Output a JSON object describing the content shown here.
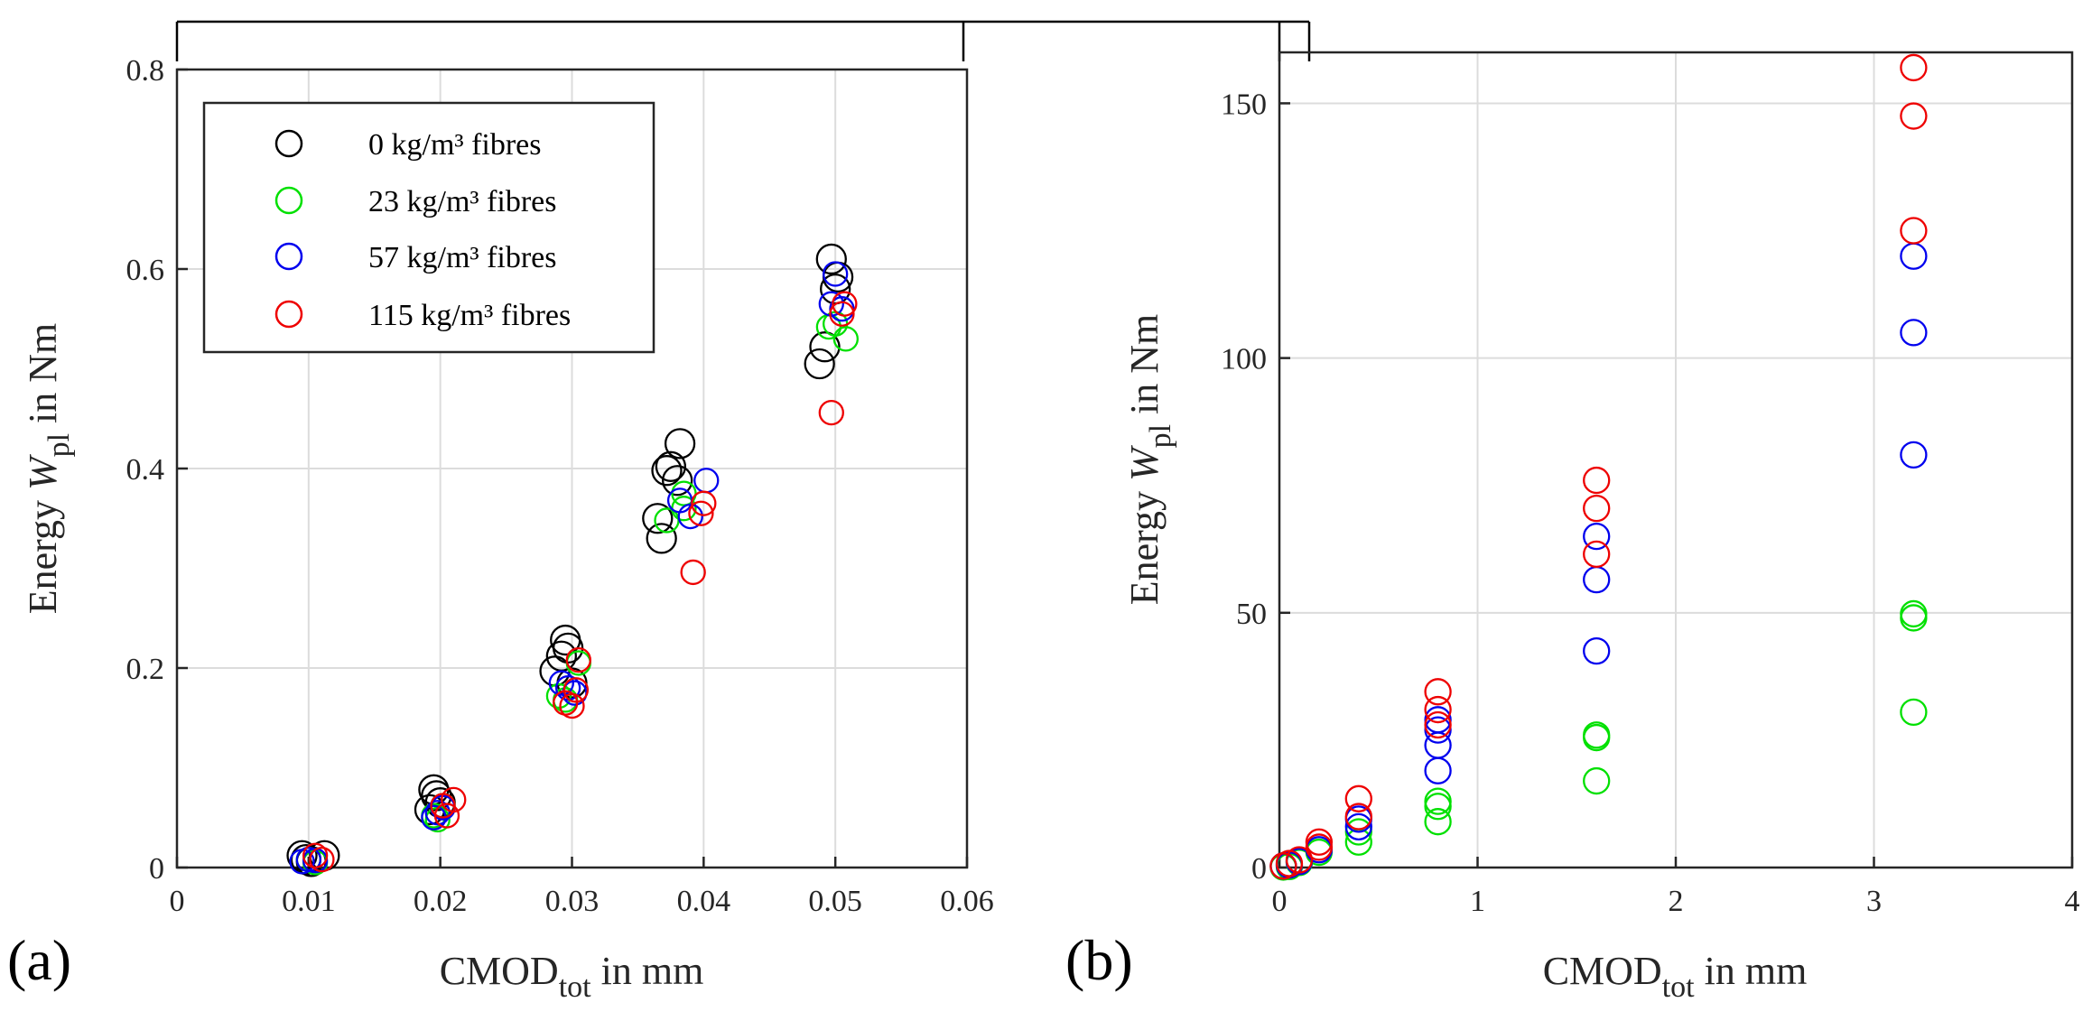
{
  "panels": [
    {
      "id": "a",
      "panel_label": "(a)",
      "ylabel": {
        "pre": "Energy  ",
        "var": "W",
        "sub": "pl",
        "post": " in Nm"
      },
      "xlabel": {
        "pre": "CMOD",
        "sub": "tot",
        "post": " in mm"
      }
    },
    {
      "id": "b",
      "panel_label": "(b)",
      "ylabel": {
        "pre": "Energy  ",
        "var": "W",
        "sub": "pl",
        "post": " in Nm"
      },
      "xlabel": {
        "pre": "CMOD",
        "sub": "tot",
        "post": " in mm"
      }
    }
  ],
  "legend": [
    {
      "label": "0 kg/m³ fibres",
      "color": "#000000"
    },
    {
      "label": "23 kg/m³ fibres",
      "color": "#00e000"
    },
    {
      "label": "57 kg/m³ fibres",
      "color": "#0000ee"
    },
    {
      "label": "115 kg/m³ fibres",
      "color": "#ee0000"
    }
  ],
  "chart_data": [
    {
      "id": "a",
      "type": "scatter",
      "title": "",
      "xlabel": "CMOD_tot in mm",
      "ylabel": "Energy W_pl in Nm",
      "xlim": [
        0,
        0.06
      ],
      "ylim": [
        0,
        0.8
      ],
      "xticks": [
        0,
        0.01,
        0.02,
        0.03,
        0.04,
        0.05,
        0.06
      ],
      "xtick_labels": [
        "0",
        "0.01",
        "0.02",
        "0.03",
        "0.04",
        "0.05",
        "0.06"
      ],
      "yticks": [
        0,
        0.2,
        0.4,
        0.6,
        0.8
      ],
      "ytick_labels": [
        "0",
        "0.2",
        "0.4",
        "0.6",
        "0.8"
      ],
      "grid": true,
      "legend_position": "top-left",
      "series": [
        {
          "name": "0 kg/m³ fibres",
          "color": "#000000",
          "marker_size": "large",
          "points": [
            [
              0.0095,
              0.012
            ],
            [
              0.0098,
              0.008
            ],
            [
              0.0102,
              0.006
            ],
            [
              0.0112,
              0.012
            ],
            [
              0.0192,
              0.058
            ],
            [
              0.0195,
              0.078
            ],
            [
              0.0197,
              0.072
            ],
            [
              0.02,
              0.065
            ],
            [
              0.0287,
              0.197
            ],
            [
              0.0292,
              0.212
            ],
            [
              0.0295,
              0.228
            ],
            [
              0.0297,
              0.22
            ],
            [
              0.03,
              0.185
            ],
            [
              0.0365,
              0.35
            ],
            [
              0.0368,
              0.33
            ],
            [
              0.0372,
              0.398
            ],
            [
              0.0375,
              0.402
            ],
            [
              0.038,
              0.388
            ],
            [
              0.0382,
              0.425
            ],
            [
              0.0488,
              0.505
            ],
            [
              0.0492,
              0.522
            ],
            [
              0.0497,
              0.61
            ],
            [
              0.05,
              0.58
            ],
            [
              0.0502,
              0.592
            ]
          ]
        },
        {
          "name": "23 kg/m³ fibres",
          "color": "#00e000",
          "marker_size": "small",
          "points": [
            [
              0.01,
              0.008
            ],
            [
              0.0105,
              0.005
            ],
            [
              0.0195,
              0.052
            ],
            [
              0.0198,
              0.048
            ],
            [
              0.0202,
              0.062
            ],
            [
              0.029,
              0.172
            ],
            [
              0.0295,
              0.168
            ],
            [
              0.0305,
              0.205
            ],
            [
              0.0372,
              0.348
            ],
            [
              0.0385,
              0.36
            ],
            [
              0.0385,
              0.375
            ],
            [
              0.0495,
              0.542
            ],
            [
              0.05,
              0.545
            ],
            [
              0.0508,
              0.53
            ]
          ]
        },
        {
          "name": "57 kg/m³ fibres",
          "color": "#0000ee",
          "marker_size": "small",
          "points": [
            [
              0.0095,
              0.006
            ],
            [
              0.01,
              0.008
            ],
            [
              0.0105,
              0.007
            ],
            [
              0.0195,
              0.05
            ],
            [
              0.0198,
              0.055
            ],
            [
              0.0202,
              0.06
            ],
            [
              0.0292,
              0.185
            ],
            [
              0.0297,
              0.18
            ],
            [
              0.0302,
              0.175
            ],
            [
              0.0382,
              0.368
            ],
            [
              0.039,
              0.352
            ],
            [
              0.0402,
              0.388
            ],
            [
              0.0497,
              0.565
            ],
            [
              0.05,
              0.595
            ],
            [
              0.0505,
              0.56
            ]
          ]
        },
        {
          "name": "115 kg/m³ fibres",
          "color": "#ee0000",
          "marker_size": "small",
          "points": [
            [
              0.0105,
              0.012
            ],
            [
              0.011,
              0.008
            ],
            [
              0.0202,
              0.062
            ],
            [
              0.0205,
              0.052
            ],
            [
              0.021,
              0.068
            ],
            [
              0.0295,
              0.165
            ],
            [
              0.03,
              0.162
            ],
            [
              0.0305,
              0.208
            ],
            [
              0.0303,
              0.178
            ],
            [
              0.0392,
              0.296
            ],
            [
              0.0398,
              0.355
            ],
            [
              0.04,
              0.365
            ],
            [
              0.0497,
              0.456
            ],
            [
              0.0505,
              0.555
            ],
            [
              0.0507,
              0.565
            ]
          ]
        }
      ]
    },
    {
      "id": "b",
      "type": "scatter",
      "title": "",
      "xlabel": "CMOD_tot in mm",
      "ylabel": "Energy W_pl in Nm",
      "xlim": [
        0,
        4
      ],
      "ylim": [
        0,
        160
      ],
      "xticks": [
        0,
        1,
        2,
        3,
        4
      ],
      "xtick_labels": [
        "0",
        "1",
        "2",
        "3",
        "4"
      ],
      "yticks": [
        0,
        50,
        100,
        150
      ],
      "ytick_labels": [
        "0",
        "50",
        "100",
        "150"
      ],
      "grid": true,
      "series": [
        {
          "name": "23 kg/m³ fibres",
          "color": "#00e000",
          "marker_size": "small",
          "points": [
            [
              0.02,
              0.1
            ],
            [
              0.05,
              0.2
            ],
            [
              0.1,
              1.0
            ],
            [
              0.2,
              3.0
            ],
            [
              0.4,
              5.0
            ],
            [
              0.4,
              7.0
            ],
            [
              0.8,
              9.0
            ],
            [
              0.8,
              12.0
            ],
            [
              0.8,
              13.0
            ],
            [
              1.6,
              17.0
            ],
            [
              1.6,
              25.5
            ],
            [
              1.6,
              26.0
            ],
            [
              3.2,
              30.5
            ],
            [
              3.2,
              49.0
            ],
            [
              3.2,
              49.8
            ]
          ]
        },
        {
          "name": "57 kg/m³ fibres",
          "color": "#0000ee",
          "marker_size": "small",
          "points": [
            [
              0.02,
              0.3
            ],
            [
              0.05,
              0.5
            ],
            [
              0.1,
              1.2
            ],
            [
              0.2,
              3.5
            ],
            [
              0.4,
              8.0
            ],
            [
              0.4,
              9.5
            ],
            [
              0.8,
              19.0
            ],
            [
              0.8,
              24.0
            ],
            [
              0.8,
              27.0
            ],
            [
              0.8,
              29.0
            ],
            [
              1.6,
              42.5
            ],
            [
              1.6,
              56.5
            ],
            [
              1.6,
              65.0
            ],
            [
              3.2,
              81.0
            ],
            [
              3.2,
              105.0
            ],
            [
              3.2,
              120.0
            ]
          ]
        },
        {
          "name": "115 kg/m³ fibres",
          "color": "#ee0000",
          "marker_size": "small",
          "points": [
            [
              0.02,
              0.3
            ],
            [
              0.05,
              0.8
            ],
            [
              0.1,
              1.5
            ],
            [
              0.2,
              4.0
            ],
            [
              0.2,
              5.0
            ],
            [
              0.4,
              10.0
            ],
            [
              0.4,
              13.5
            ],
            [
              0.8,
              28.0
            ],
            [
              0.8,
              31.0
            ],
            [
              0.8,
              34.5
            ],
            [
              1.6,
              61.5
            ],
            [
              1.6,
              70.5
            ],
            [
              1.6,
              76.0
            ],
            [
              3.2,
              125.0
            ],
            [
              3.2,
              147.5
            ],
            [
              3.2,
              157.0
            ]
          ]
        }
      ]
    }
  ]
}
